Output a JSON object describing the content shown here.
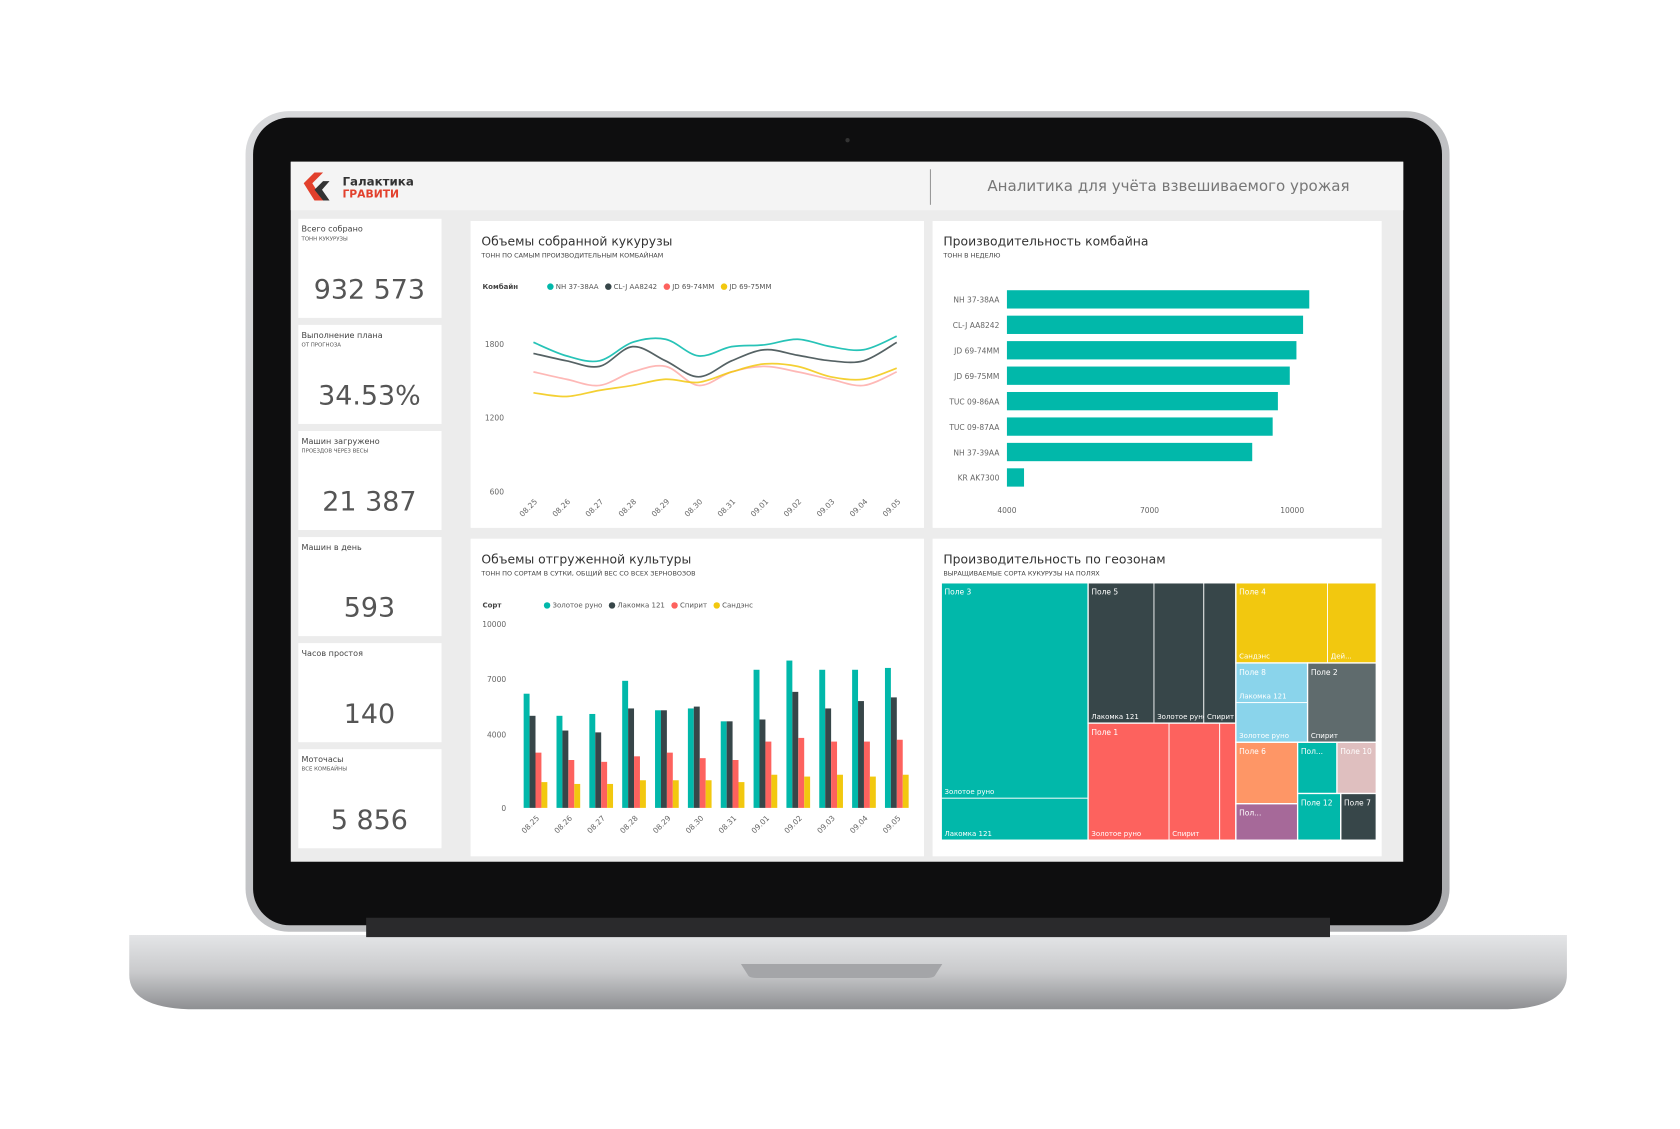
{
  "header": {
    "logo_line1": "Галактика",
    "logo_line2": "ГРАВИТИ",
    "title": "Аналитика для учёта взвешиваемого урожая"
  },
  "kpis": [
    {
      "label": "Всего собрано",
      "sublabel": "ТОНН КУКУРУЗЫ",
      "value": "932 573"
    },
    {
      "label": "Выполнение плана",
      "sublabel": "ОТ ПРОГНОЗА",
      "value": "34.53%"
    },
    {
      "label": "Машин загружено",
      "sublabel": "ПРОЕЗДОВ ЧЕРЕЗ ВЕСЫ",
      "value": "21 387"
    },
    {
      "label": "Машин в день",
      "value": "593"
    },
    {
      "label": "Часов простоя",
      "value": "140"
    },
    {
      "label": "Моточасы",
      "sublabel": "ВСЕ КОМБАЙНЫ",
      "value": "5 856"
    }
  ],
  "charts": [
    {
      "type": "line",
      "title": "Объемы собранной кукурузы",
      "subtitle": "ТОНН ПО САМЫМ ПРОИЗВОДИТЕЛЬНЫМ КОМБАЙНАМ",
      "legend_title": "Комбайн",
      "categories": [
        "08.25",
        "08.26",
        "08.27",
        "08.28",
        "08.29",
        "08.30",
        "08.31",
        "09.01",
        "09.02",
        "09.03",
        "09.04",
        "09.05"
      ],
      "series": [
        {
          "name": "NH 37-38AA",
          "color": "#01b8aa",
          "values": [
            1810,
            1700,
            1660,
            1810,
            1835,
            1700,
            1775,
            1790,
            1835,
            1775,
            1750,
            1860
          ]
        },
        {
          "name": "CL-J AA8242",
          "color": "#374649",
          "values": [
            1720,
            1660,
            1615,
            1775,
            1660,
            1530,
            1660,
            1750,
            1705,
            1660,
            1660,
            1810
          ]
        },
        {
          "name": "JD 69-74MM",
          "color": "#fd625e",
          "values": [
            1570,
            1510,
            1460,
            1570,
            1615,
            1460,
            1570,
            1615,
            1570,
            1510,
            1460,
            1570
          ]
        },
        {
          "name": "JD 69-75MM",
          "color": "#f2c80f",
          "values": [
            1400,
            1370,
            1420,
            1460,
            1510,
            1485,
            1570,
            1635,
            1615,
            1530,
            1510,
            1600
          ]
        }
      ],
      "ylim": [
        600,
        2000
      ],
      "yticks": [
        600,
        1200,
        1800
      ]
    },
    {
      "type": "bar",
      "horizontal": true,
      "title": "Производительность комбайна",
      "subtitle": "ТОНН В НЕДЕЛЮ",
      "categories": [
        "NH 37-38AA",
        "CL-J AA8242",
        "JD 69-74MM",
        "JD 69-75MM",
        "TUC 09-86AA",
        "TUC 09-87AA",
        "NH 37-39AA",
        "KR AK7300"
      ],
      "values": [
        10360,
        10230,
        10090,
        9950,
        9700,
        9590,
        9160,
        4360
      ],
      "color": "#01b8aa",
      "xlim": [
        4000,
        11000
      ],
      "xticks": [
        4000,
        7000,
        10000
      ]
    },
    {
      "type": "bar",
      "horizontal": false,
      "title": "Объемы отгруженной культуры",
      "subtitle": "ТОНН ПО СОРТАМ В СУТКИ, ОБЩИЙ ВЕС СО ВСЕХ ЗЕРНОВОЗОВ",
      "legend_title": "Сорт",
      "categories": [
        "08.25",
        "08.26",
        "08.27",
        "08.28",
        "08.29",
        "08.30",
        "08.31",
        "09.01",
        "09.02",
        "09.03",
        "09.04",
        "09.05"
      ],
      "series": [
        {
          "name": "Золотое руно",
          "color": "#01b8aa",
          "values": [
            6200,
            5000,
            5100,
            6900,
            5300,
            5400,
            4700,
            7500,
            8000,
            7500,
            7500,
            7600
          ]
        },
        {
          "name": "Лакомка 121",
          "color": "#374649",
          "values": [
            5000,
            4200,
            4100,
            5400,
            5300,
            5500,
            4700,
            4800,
            6300,
            5400,
            5800,
            6000
          ]
        },
        {
          "name": "Спирит",
          "color": "#fd625e",
          "values": [
            3000,
            2600,
            2500,
            2800,
            3000,
            2700,
            2600,
            3600,
            3800,
            3600,
            3600,
            3700
          ]
        },
        {
          "name": "Сандэнс",
          "color": "#f2c80f",
          "values": [
            1400,
            1300,
            1300,
            1500,
            1500,
            1500,
            1400,
            1800,
            1700,
            1800,
            1700,
            1800
          ]
        }
      ],
      "ylim": [
        0,
        10000
      ],
      "yticks": [
        0,
        4000,
        7000,
        10000
      ]
    },
    {
      "type": "treemap",
      "title": "Производительность по геозонам",
      "subtitle": "ВЫРАЩИВАЕМЫЕ СОРТА КУКУРУЗЫ НА ПОЛЯХ",
      "nodes": [
        {
          "name": "Поле 3",
          "color": "#01b8aa",
          "children": [
            {
              "name": "Золотое руно",
              "value": 267
            },
            {
              "name": "Лакомка 121",
              "value": 52
            }
          ]
        },
        {
          "name": "Поле 5",
          "color": "#374649",
          "children": [
            {
              "name": "Лакомка 121",
              "value": 78
            },
            {
              "name": "Золотое руно",
              "value": 59
            },
            {
              "name": "Спирит",
              "value": 38
            }
          ]
        },
        {
          "name": "Поле 1",
          "color": "#fd625e",
          "children": [
            {
              "name": "Золотое руно",
              "value": 80
            },
            {
              "name": "Спирит",
              "value": 50
            },
            {
              "name": "Лакомка 121",
              "value": 16
            }
          ]
        },
        {
          "name": "Поле 4",
          "color": "#f2c80f",
          "children": [
            {
              "name": "Сандэнс",
              "value": 62
            },
            {
              "name": "Дей...",
              "value": 33
            }
          ]
        },
        {
          "name": "Поле 8",
          "color": "#8ad4eb",
          "children": [
            {
              "name": "Лакомка 121",
              "value": 24
            },
            {
              "name": "Золотое руно",
              "value": 24
            }
          ]
        },
        {
          "name": "Поле 2",
          "color": "#5f6b6d",
          "children": [
            {
              "name": "Спирит",
              "value": 46
            }
          ]
        },
        {
          "name": "Поле 6",
          "color": "#fe9666",
          "value": 32
        },
        {
          "name": "Пол...",
          "color": "#a66999",
          "value": 19
        },
        {
          "name": "Пол...",
          "color": "#01b8aa",
          "value": 17
        },
        {
          "name": "Поле 10",
          "color": "#dfbfbf",
          "value": 17
        },
        {
          "name": "Поле 12",
          "color": "#01b8aa",
          "value": 17
        },
        {
          "name": "Поле 7",
          "color": "#374649",
          "value": 14
        }
      ]
    }
  ]
}
